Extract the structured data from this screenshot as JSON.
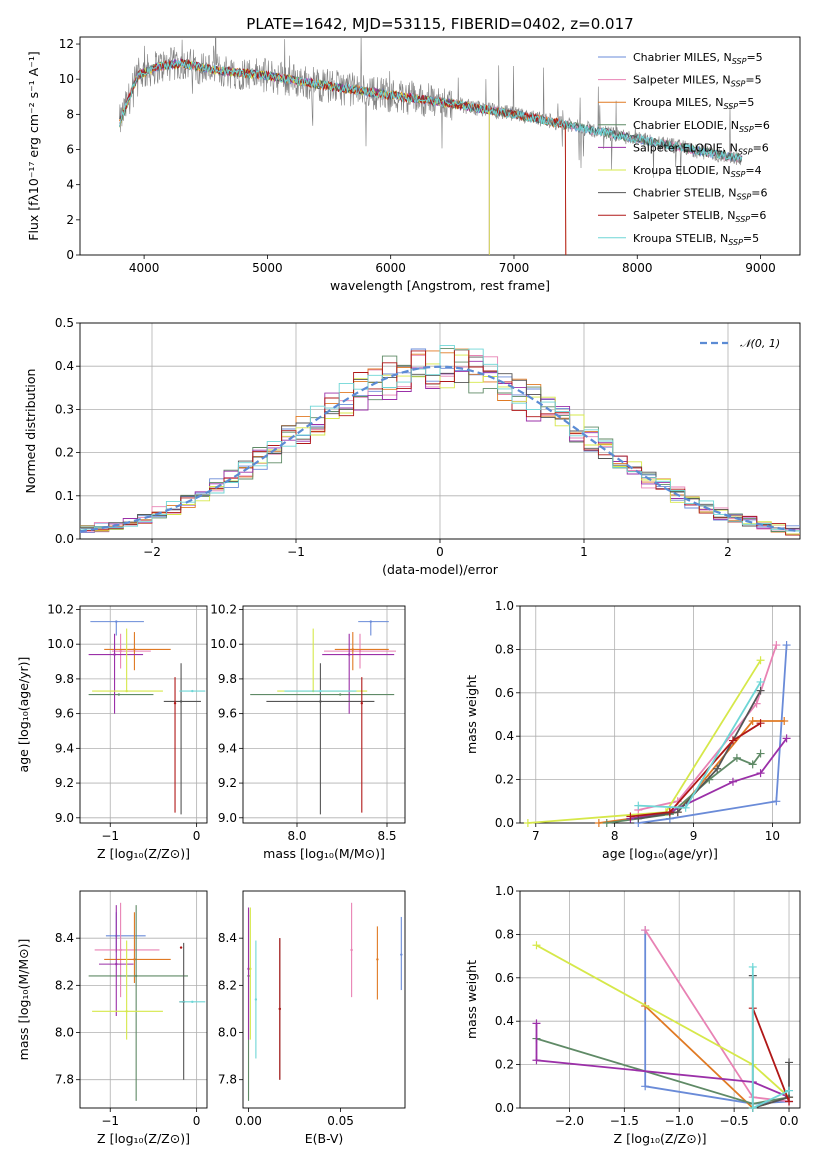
{
  "figure": {
    "title": "PLATE=1642, MJD=53115, FIBERID=0402, z=0.017",
    "colors": {
      "Chabrier MILES": "#6a8bd8",
      "Salpeter MILES": "#e882b4",
      "Kroupa MILES": "#e07a24",
      "Chabrier ELODIE": "#5f8a66",
      "Salpeter ELODIE": "#9b30a8",
      "Kroupa ELODIE": "#d6e84a",
      "Chabrier STELIB": "#555555",
      "Salpeter STELIB": "#b01818",
      "Kroupa STELIB": "#6ed6d6"
    }
  },
  "chart_data": [
    {
      "id": "spectrum",
      "type": "line",
      "title": "PLATE=1642, MJD=53115, FIBERID=0402, z=0.017",
      "xlabel": "wavelength [Angstrom, rest frame]",
      "ylabel": "Flux [fλ10⁻¹⁷ erg cm⁻² s⁻¹ A⁻¹]",
      "xlim": [
        3480,
        9320
      ],
      "ylim": [
        0,
        12.4
      ],
      "xticks": [
        4000,
        5000,
        6000,
        7000,
        8000,
        9000
      ],
      "yticks": [
        0,
        2,
        4,
        6,
        8,
        10,
        12
      ],
      "grid": false,
      "legend_position": "upper-right",
      "continuum": {
        "x": [
          3800,
          3950,
          4100,
          4300,
          4600,
          5000,
          5500,
          6000,
          6500,
          7000,
          7500,
          8000,
          8500,
          8850
        ],
        "y": [
          7.5,
          10.2,
          10.7,
          10.9,
          10.5,
          10.2,
          9.6,
          9.1,
          8.6,
          8.0,
          7.3,
          6.6,
          5.9,
          5.5
        ]
      },
      "data_extent": [
        3800,
        8850
      ],
      "model_cutoffs": {
        "Kroupa ELODIE": 6800,
        "Salpeter STELIB": 7420,
        "Kroupa MILES": 7420,
        "Salpeter ELODIE": 6800
      },
      "series": [
        {
          "name": "Chabrier MILES, N_SSP=5",
          "label_main": "Chabrier MILES, N",
          "label_sub": "SSP",
          "label_tail": "=5",
          "key": "Chabrier MILES"
        },
        {
          "name": "Salpeter MILES, N_SSP=5",
          "label_main": "Salpeter MILES, N",
          "label_sub": "SSP",
          "label_tail": "=5",
          "key": "Salpeter MILES"
        },
        {
          "name": "Kroupa MILES, N_SSP=5",
          "label_main": "Kroupa MILES, N",
          "label_sub": "SSP",
          "label_tail": "=5",
          "key": "Kroupa MILES"
        },
        {
          "name": "Chabrier ELODIE, N_SSP=6",
          "label_main": "Chabrier ELODIE, N",
          "label_sub": "SSP",
          "label_tail": "=6",
          "key": "Chabrier ELODIE"
        },
        {
          "name": "Salpeter ELODIE, N_SSP=6",
          "label_main": "Salpeter ELODIE, N",
          "label_sub": "SSP",
          "label_tail": "=6",
          "key": "Salpeter ELODIE"
        },
        {
          "name": "Kroupa ELODIE, N_SSP=4",
          "label_main": "Kroupa ELODIE, N",
          "label_sub": "SSP",
          "label_tail": "=4",
          "key": "Kroupa ELODIE"
        },
        {
          "name": "Chabrier STELIB, N_SSP=6",
          "label_main": "Chabrier STELIB, N",
          "label_sub": "SSP",
          "label_tail": "=6",
          "key": "Chabrier STELIB"
        },
        {
          "name": "Salpeter STELIB, N_SSP=6",
          "label_main": "Salpeter STELIB, N",
          "label_sub": "SSP",
          "label_tail": "=6",
          "key": "Salpeter STELIB"
        },
        {
          "name": "Kroupa STELIB, N_SSP=5",
          "label_main": "Kroupa STELIB, N",
          "label_sub": "SSP",
          "label_tail": "=5",
          "key": "Kroupa STELIB"
        }
      ]
    },
    {
      "id": "residuals",
      "type": "line",
      "xlabel": "(data-model)/error",
      "ylabel": "Normed distribution",
      "xlim": [
        -2.5,
        2.5
      ],
      "ylim": [
        0,
        0.5
      ],
      "xticks": [
        -2,
        -1,
        0,
        1,
        2
      ],
      "yticks": [
        0.0,
        0.1,
        0.2,
        0.3,
        0.4,
        0.5
      ],
      "grid": true,
      "legend_position": "upper-right",
      "reference": {
        "name": "𝒩(0, 1)",
        "mean": 0,
        "sigma": 1
      },
      "bins": {
        "start": -2.5,
        "width": 0.1
      }
    },
    {
      "id": "age-vs-Z",
      "type": "scatter",
      "xlabel": "Z [log₁₀(Z/Z⊙)]",
      "ylabel": "age  [log₁₀(age/yr)]",
      "xlim": [
        -1.35,
        0.12
      ],
      "ylim": [
        8.97,
        10.22
      ],
      "xticks": [
        -1,
        0
      ],
      "yticks": [
        9.0,
        9.2,
        9.4,
        9.6,
        9.8,
        10.0,
        10.2
      ],
      "grid": true,
      "points": [
        {
          "key": "Chabrier MILES",
          "x": -0.93,
          "xerr": [
            0.3,
            0.32
          ],
          "y": 10.13,
          "yerr": [
            0.08,
            0.0
          ]
        },
        {
          "key": "Salpeter MILES",
          "x": -0.88,
          "xerr": [
            0.1,
            0.35
          ],
          "y": 9.96,
          "yerr": [
            0.1,
            0.1
          ]
        },
        {
          "key": "Kroupa MILES",
          "x": -0.72,
          "xerr": [
            0.35,
            0.42
          ],
          "y": 9.97,
          "yerr": [
            0.12,
            0.1
          ]
        },
        {
          "key": "Chabrier ELODIE",
          "x": -0.9,
          "xerr": [
            0.35,
            0.4
          ],
          "y": 9.71,
          "yerr": [
            0.0,
            0.0
          ]
        },
        {
          "key": "Salpeter ELODIE",
          "x": -0.95,
          "xerr": [
            0.3,
            0.33
          ],
          "y": 9.94,
          "yerr": [
            0.34,
            0.12
          ]
        },
        {
          "key": "Kroupa ELODIE",
          "x": -0.81,
          "xerr": [
            0.4,
            0.42
          ],
          "y": 9.73,
          "yerr": [
            0.0,
            0.36
          ]
        },
        {
          "key": "Chabrier STELIB",
          "x": -0.18,
          "xerr": [
            0.2,
            0.23
          ],
          "y": 9.67,
          "yerr": [
            0.65,
            0.22
          ]
        },
        {
          "key": "Salpeter STELIB",
          "x": -0.25,
          "xerr": [
            0.0,
            0.0
          ],
          "y": 9.66,
          "yerr": [
            0.63,
            0.15
          ]
        },
        {
          "key": "Kroupa STELIB",
          "x": -0.05,
          "xerr": [
            0.15,
            0.15
          ],
          "y": 9.73,
          "yerr": [
            0.0,
            0.0
          ]
        }
      ]
    },
    {
      "id": "age-vs-mass",
      "type": "scatter",
      "xlabel": "mass [log₁₀(M/M⊙)]",
      "xlim": [
        7.7,
        8.6
      ],
      "ylim": [
        8.97,
        10.22
      ],
      "xticks": [
        8.0,
        8.5
      ],
      "yticks": [
        9.0,
        9.2,
        9.4,
        9.6,
        9.8,
        10.0,
        10.2
      ],
      "grid": true,
      "points": [
        {
          "key": "Chabrier MILES",
          "x": 8.41,
          "xerr": [
            0.07,
            0.1
          ],
          "y": 10.13,
          "yerr": [
            0.08,
            0.0
          ]
        },
        {
          "key": "Salpeter MILES",
          "x": 8.35,
          "xerr": [
            0.2,
            0.2
          ],
          "y": 9.96,
          "yerr": [
            0.1,
            0.1
          ]
        },
        {
          "key": "Kroupa MILES",
          "x": 8.31,
          "xerr": [
            0.1,
            0.2
          ],
          "y": 9.97,
          "yerr": [
            0.12,
            0.1
          ]
        },
        {
          "key": "Chabrier ELODIE",
          "x": 8.24,
          "xerr": [
            0.5,
            0.3
          ],
          "y": 9.71,
          "yerr": [
            0.0,
            0.0
          ]
        },
        {
          "key": "Salpeter ELODIE",
          "x": 8.29,
          "xerr": [
            0.15,
            0.25
          ],
          "y": 9.94,
          "yerr": [
            0.34,
            0.12
          ]
        },
        {
          "key": "Kroupa ELODIE",
          "x": 8.09,
          "xerr": [
            0.2,
            0.3
          ],
          "y": 9.73,
          "yerr": [
            0.0,
            0.36
          ]
        },
        {
          "key": "Chabrier STELIB",
          "x": 8.13,
          "xerr": [
            0.3,
            0.3
          ],
          "y": 9.67,
          "yerr": [
            0.65,
            0.22
          ]
        },
        {
          "key": "Salpeter STELIB",
          "x": 8.36,
          "xerr": [
            0.0,
            0.0
          ],
          "y": 9.66,
          "yerr": [
            0.63,
            0.15
          ]
        },
        {
          "key": "Kroupa STELIB",
          "x": 8.13,
          "xerr": [
            0.2,
            0.2
          ],
          "y": 9.73,
          "yerr": [
            0.0,
            0.0
          ]
        }
      ]
    },
    {
      "id": "mass-weight-vs-age",
      "type": "line",
      "xlabel": "age  [log₁₀(age/yr)]",
      "ylabel": "mass weight",
      "xlim": [
        6.8,
        10.35
      ],
      "ylim": [
        0,
        1
      ],
      "xticks": [
        7,
        8,
        9,
        10
      ],
      "yticks": [
        0.0,
        0.2,
        0.4,
        0.6,
        0.8,
        1.0
      ],
      "grid": true,
      "series": [
        {
          "key": "Chabrier MILES",
          "x": [
            8.3,
            8.7,
            10.05,
            10.18
          ],
          "y": [
            0.0,
            0.02,
            0.1,
            0.82
          ]
        },
        {
          "key": "Salpeter MILES",
          "x": [
            8.3,
            8.8,
            9.8,
            10.05
          ],
          "y": [
            0.06,
            0.1,
            0.55,
            0.82
          ]
        },
        {
          "key": "Kroupa MILES",
          "x": [
            7.8,
            8.8,
            9.75,
            10.15
          ],
          "y": [
            0.0,
            0.05,
            0.47,
            0.47
          ]
        },
        {
          "key": "Chabrier ELODIE",
          "x": [
            7.9,
            8.7,
            9.2,
            9.55,
            9.75,
            9.85
          ],
          "y": [
            0.0,
            0.04,
            0.2,
            0.3,
            0.27,
            0.32
          ]
        },
        {
          "key": "Salpeter ELODIE",
          "x": [
            8.2,
            8.7,
            9.5,
            9.85,
            10.18
          ],
          "y": [
            0.02,
            0.05,
            0.19,
            0.23,
            0.39
          ]
        },
        {
          "key": "Kroupa ELODIE",
          "x": [
            6.9,
            8.65,
            9.85
          ],
          "y": [
            0.0,
            0.05,
            0.75
          ]
        },
        {
          "key": "Chabrier STELIB",
          "x": [
            8.3,
            8.8,
            9.3,
            9.85
          ],
          "y": [
            0.02,
            0.05,
            0.25,
            0.61
          ]
        },
        {
          "key": "Salpeter STELIB",
          "x": [
            8.2,
            8.7,
            9.5,
            9.85
          ],
          "y": [
            0.03,
            0.05,
            0.38,
            0.46
          ]
        },
        {
          "key": "Kroupa STELIB",
          "x": [
            8.3,
            8.9,
            9.85
          ],
          "y": [
            0.08,
            0.07,
            0.65
          ]
        }
      ]
    },
    {
      "id": "mass-vs-Z",
      "type": "scatter",
      "xlabel": "Z [log₁₀(Z/Z⊙)]",
      "ylabel": "mass [log₁₀(M/M⊙)]",
      "xlim": [
        -1.35,
        0.12
      ],
      "ylim": [
        7.68,
        8.6
      ],
      "xticks": [
        -1,
        0
      ],
      "yticks": [
        7.8,
        8.0,
        8.2,
        8.4
      ],
      "grid": true,
      "points": [
        {
          "key": "Chabrier MILES",
          "x": -0.93,
          "xerr": [
            0.12,
            0.34
          ],
          "y": 8.41,
          "yerr": [
            0.07,
            0.1
          ]
        },
        {
          "key": "Salpeter MILES",
          "x": -0.88,
          "xerr": [
            0.3,
            0.45
          ],
          "y": 8.35,
          "yerr": [
            0.2,
            0.2
          ]
        },
        {
          "key": "Kroupa MILES",
          "x": -0.72,
          "xerr": [
            0.35,
            0.42
          ],
          "y": 8.31,
          "yerr": [
            0.1,
            0.2
          ]
        },
        {
          "key": "Chabrier ELODIE",
          "x": -0.7,
          "xerr": [
            0.55,
            0.6
          ],
          "y": 8.24,
          "yerr": [
            0.53,
            0.3
          ]
        },
        {
          "key": "Salpeter ELODIE",
          "x": -0.93,
          "xerr": [
            0.2,
            0.2
          ],
          "y": 8.29,
          "yerr": [
            0.22,
            0.25
          ]
        },
        {
          "key": "Kroupa ELODIE",
          "x": -0.81,
          "xerr": [
            0.4,
            0.42
          ],
          "y": 8.09,
          "yerr": [
            0.12,
            0.3
          ]
        },
        {
          "key": "Chabrier STELIB",
          "x": -0.15,
          "xerr": [
            0.05,
            0.0
          ],
          "y": 8.13,
          "yerr": [
            0.33,
            0.25
          ]
        },
        {
          "key": "Salpeter STELIB",
          "x": -0.18,
          "xerr": [
            0.0,
            0.0
          ],
          "y": 8.36,
          "yerr": [
            0.0,
            0.0
          ]
        },
        {
          "key": "Kroupa STELIB",
          "x": -0.05,
          "xerr": [
            0.15,
            0.15
          ],
          "y": 8.13,
          "yerr": [
            0.0,
            0.0
          ]
        }
      ]
    },
    {
      "id": "mass-vs-EBV",
      "type": "scatter",
      "xlabel": "E(B-V)",
      "xlim": [
        -0.003,
        0.085
      ],
      "ylim": [
        7.68,
        8.6
      ],
      "xticks": [
        0.0,
        0.05
      ],
      "tick_labels": [
        "0.00",
        "0.05"
      ],
      "yticks": [
        7.8,
        8.0,
        8.2,
        8.4
      ],
      "grid": false,
      "points": [
        {
          "key": "Chabrier MILES",
          "x": 0.083,
          "y": 8.33,
          "yerr": [
            0.15,
            0.16
          ]
        },
        {
          "key": "Salpeter MILES",
          "x": 0.056,
          "y": 8.35,
          "yerr": [
            0.2,
            0.2
          ]
        },
        {
          "key": "Kroupa MILES",
          "x": 0.07,
          "y": 8.31,
          "yerr": [
            0.17,
            0.14
          ]
        },
        {
          "key": "Chabrier ELODIE",
          "x": 0.0,
          "y": 8.24,
          "yerr": [
            0.53,
            0.28
          ]
        },
        {
          "key": "Salpeter ELODIE",
          "x": 0.0,
          "y": 8.27,
          "yerr": [
            0.3,
            0.26
          ]
        },
        {
          "key": "Kroupa ELODIE",
          "x": 0.001,
          "y": 8.27,
          "yerr": [
            0.3,
            0.26
          ]
        },
        {
          "key": "Chabrier STELIB",
          "x": 0.017,
          "y": 8.1,
          "yerr": [
            0.3,
            0.3
          ]
        },
        {
          "key": "Salpeter STELIB",
          "x": 0.017,
          "y": 8.1,
          "yerr": [
            0.3,
            0.3
          ]
        },
        {
          "key": "Kroupa STELIB",
          "x": 0.004,
          "y": 8.14,
          "yerr": [
            0.25,
            0.25
          ]
        }
      ]
    },
    {
      "id": "mass-weight-vs-Z",
      "type": "line",
      "xlabel": "Z [log₁₀(Z/Z⊙)]",
      "ylabel": "mass weight",
      "xlim": [
        -2.45,
        0.1
      ],
      "ylim": [
        0,
        1
      ],
      "xticks": [
        -2.0,
        -1.5,
        -1.0,
        -0.5,
        0.0
      ],
      "tick_labels": [
        "−2.0",
        "−1.5",
        "−1.0",
        "−0.5",
        "0.0"
      ],
      "yticks": [
        0.0,
        0.2,
        0.4,
        0.6,
        0.8,
        1.0
      ],
      "grid": true,
      "series": [
        {
          "key": "Chabrier MILES",
          "x": [
            -1.31,
            -1.31,
            -0.33,
            0.0
          ],
          "y": [
            0.82,
            0.1,
            0.02,
            0.03
          ]
        },
        {
          "key": "Salpeter MILES",
          "x": [
            -1.31,
            -0.33,
            0.0
          ],
          "y": [
            0.82,
            0.05,
            0.03
          ]
        },
        {
          "key": "Kroupa MILES",
          "x": [
            -1.31,
            -0.33,
            0.0
          ],
          "y": [
            0.47,
            0.0,
            0.05
          ]
        },
        {
          "key": "Chabrier ELODIE",
          "x": [
            -2.3,
            -0.33,
            0.0
          ],
          "y": [
            0.32,
            0.02,
            0.05
          ]
        },
        {
          "key": "Salpeter ELODIE",
          "x": [
            -2.3,
            -2.3,
            -0.33,
            0.0
          ],
          "y": [
            0.39,
            0.22,
            0.12,
            0.05
          ]
        },
        {
          "key": "Kroupa ELODIE",
          "x": [
            -2.3,
            -0.33,
            0.0
          ],
          "y": [
            0.75,
            0.2,
            0.05
          ]
        },
        {
          "key": "Chabrier STELIB",
          "x": [
            -0.33,
            -0.33,
            0.0,
            0.0
          ],
          "y": [
            0.61,
            0.0,
            0.05,
            0.21
          ]
        },
        {
          "key": "Salpeter STELIB",
          "x": [
            -0.33,
            0.0
          ],
          "y": [
            0.46,
            0.03
          ]
        },
        {
          "key": "Kroupa STELIB",
          "x": [
            -0.33,
            -0.33,
            0.0
          ],
          "y": [
            0.65,
            0.0,
            0.08
          ]
        }
      ]
    }
  ]
}
